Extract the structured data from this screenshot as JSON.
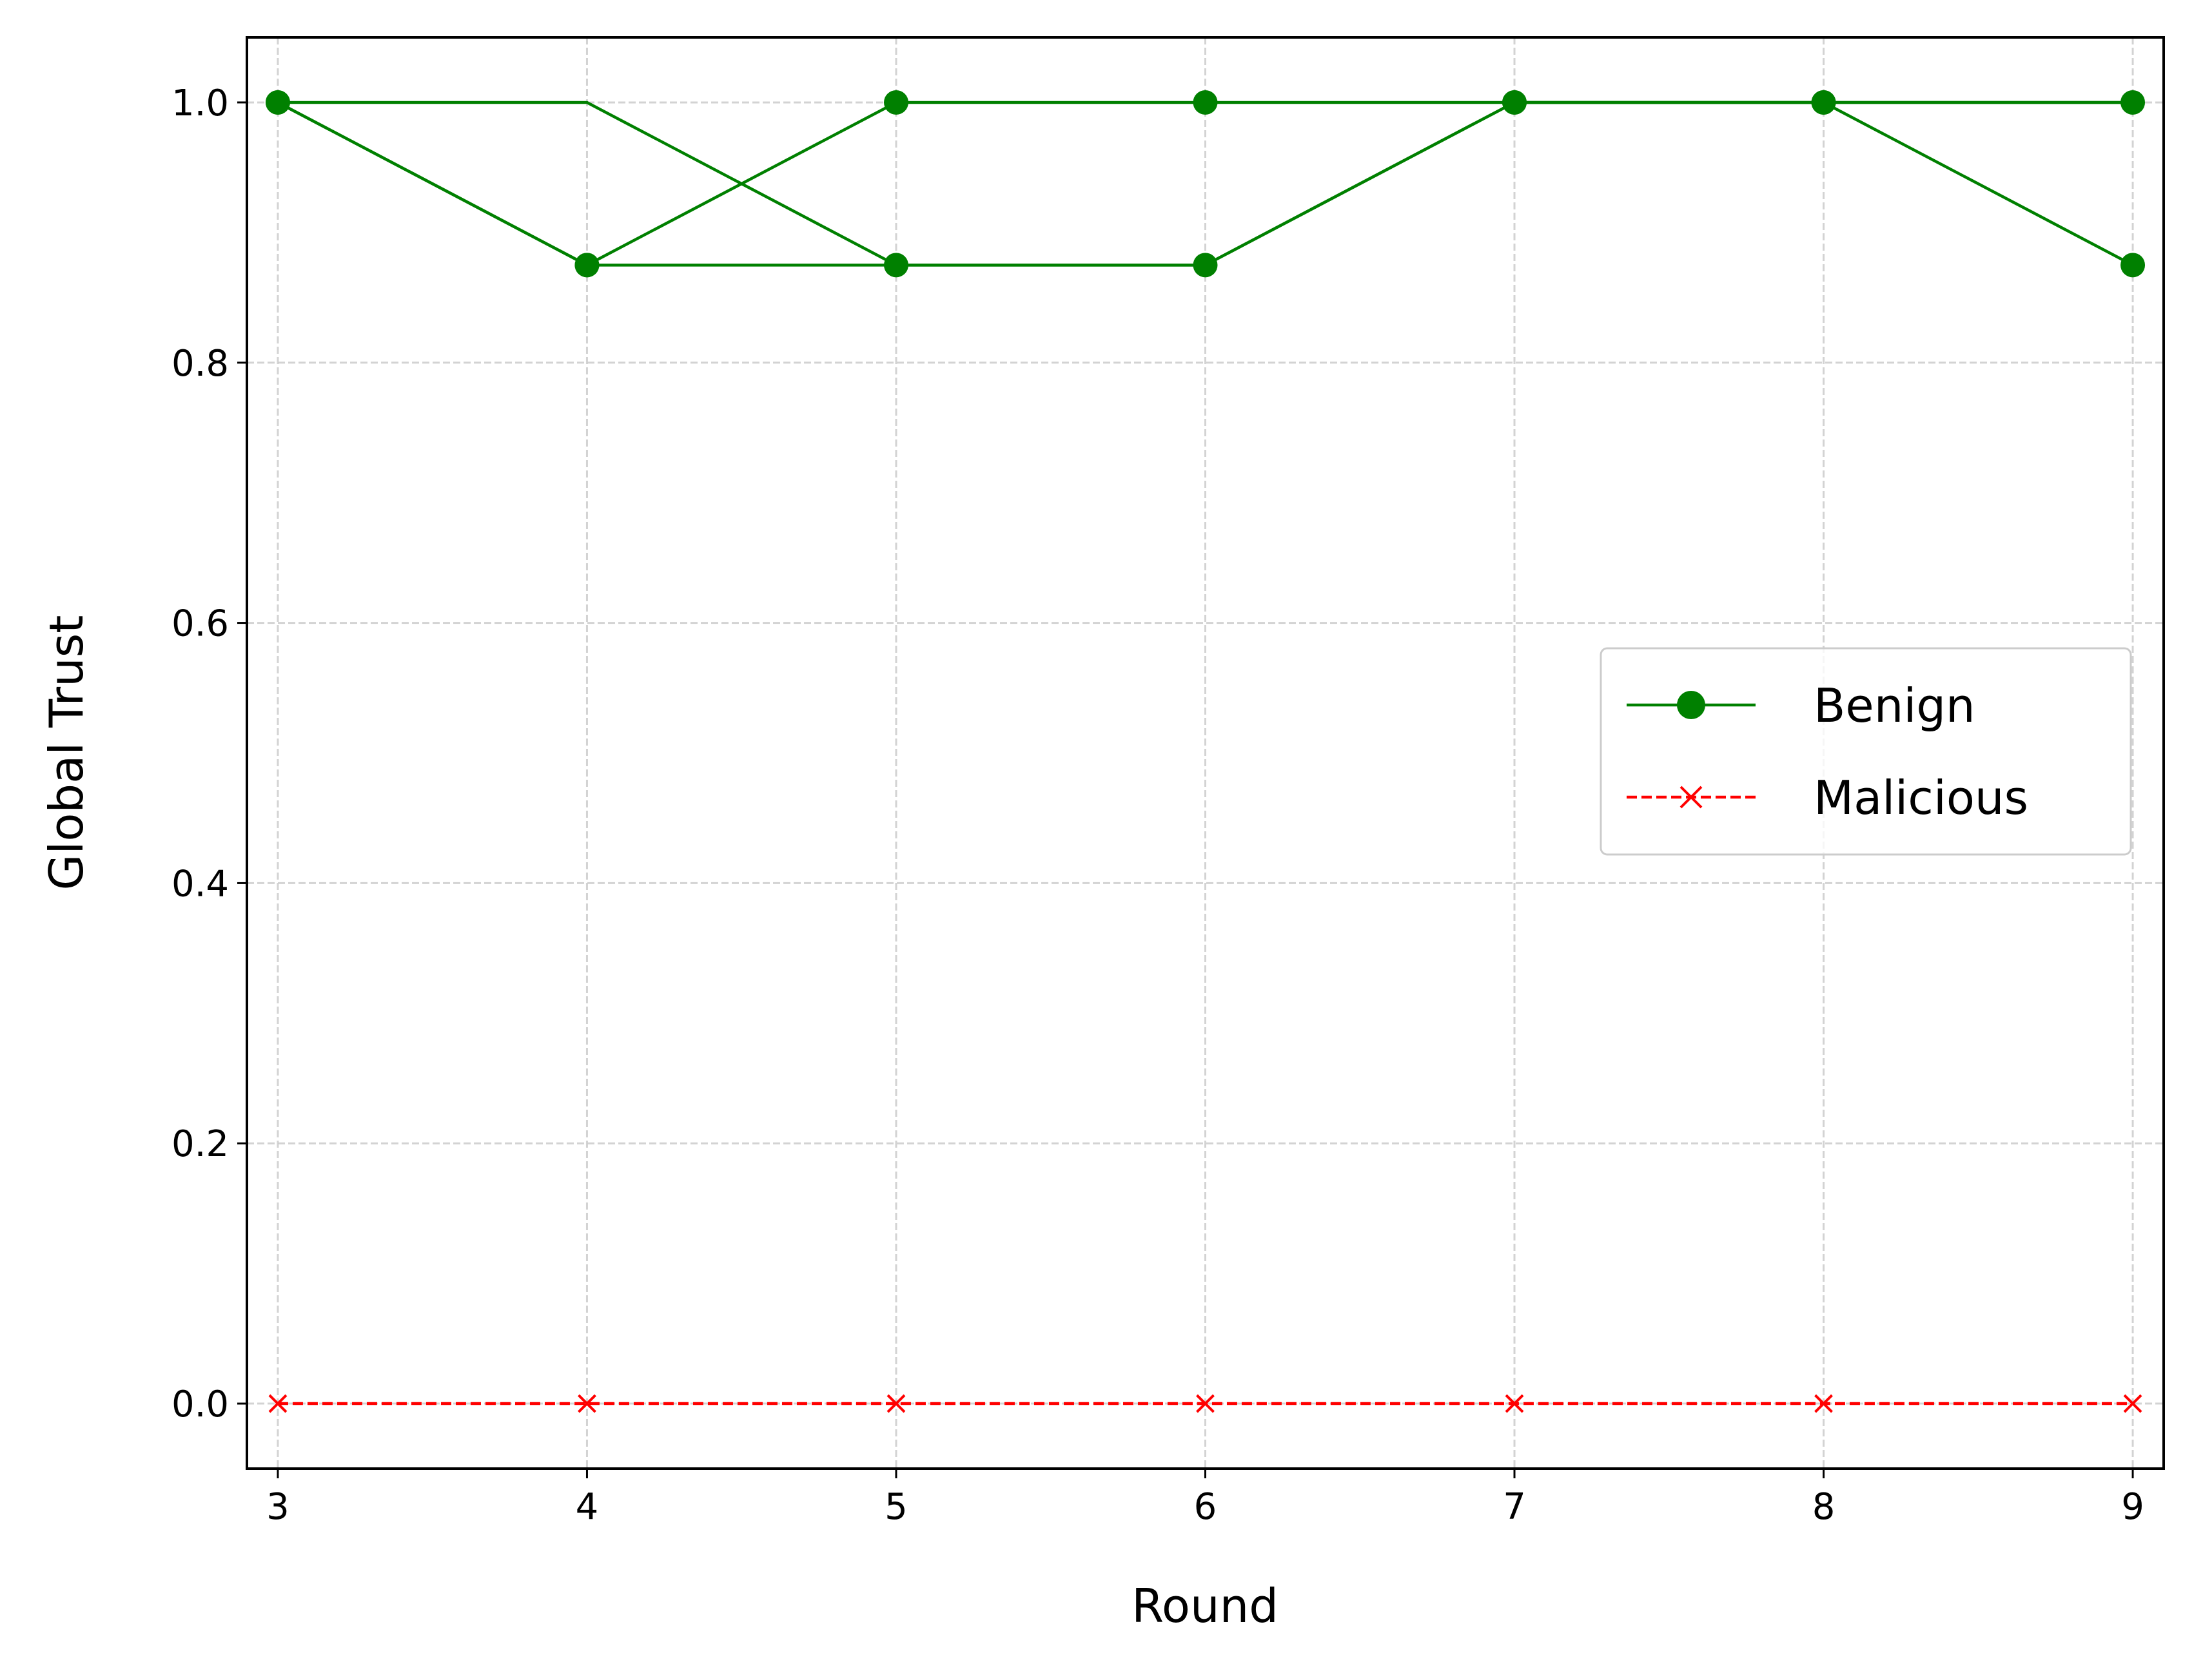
{
  "chart_data": {
    "type": "line",
    "title": "",
    "xlabel": "Round",
    "ylabel": "Global Trust",
    "x": [
      3,
      4,
      5,
      6,
      7,
      8,
      9
    ],
    "xlim": [
      2.9,
      9.1
    ],
    "ylim": [
      -0.05,
      1.05
    ],
    "x_ticks": [
      "3",
      "4",
      "5",
      "6",
      "7",
      "8",
      "9"
    ],
    "y_ticks": [
      "0.0",
      "0.2",
      "0.4",
      "0.6",
      "0.8",
      "1.0"
    ],
    "y_tick_values": [
      0.0,
      0.2,
      0.4,
      0.6,
      0.8,
      1.0
    ],
    "grid": true,
    "legend_position": "center-right",
    "series": [
      {
        "name": "Benign",
        "legend": true,
        "color": "#008000",
        "line_style": "solid",
        "marker": "circle",
        "values": [
          1.0,
          0.875,
          1.0,
          1.0,
          1.0,
          1.0,
          1.0
        ]
      },
      {
        "name": "",
        "legend": false,
        "color": "#008000",
        "line_style": "solid",
        "marker": "circle",
        "values": [
          1.0,
          0.875,
          0.875,
          0.875,
          1.0,
          1.0,
          0.875
        ]
      },
      {
        "name": "",
        "legend": false,
        "color": "#008000",
        "line_style": "solid",
        "marker": "none",
        "values": [
          1.0,
          1.0,
          0.875,
          0.875,
          1.0,
          1.0,
          1.0
        ]
      },
      {
        "name": "Malicious",
        "legend": true,
        "color": "#ff0000",
        "line_style": "dashed",
        "marker": "x",
        "values": [
          0,
          0,
          0,
          0,
          0,
          0,
          0
        ]
      }
    ]
  }
}
